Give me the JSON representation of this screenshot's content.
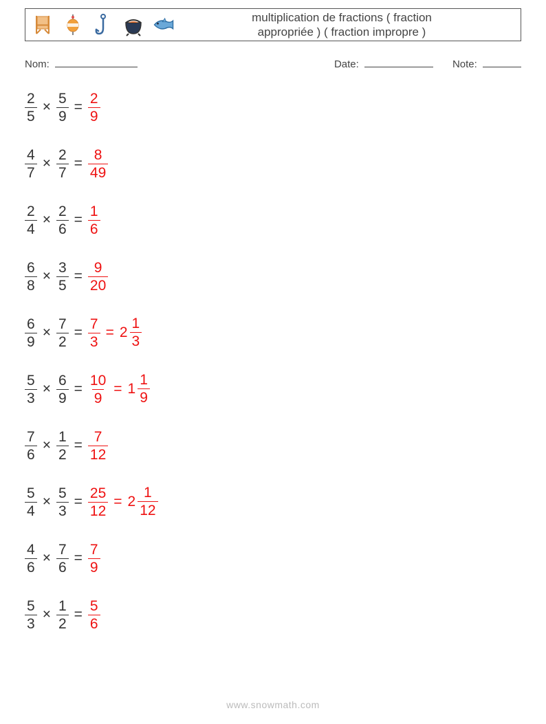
{
  "header": {
    "title_line1": "multiplication de fractions ( fraction",
    "title_line2": "appropriée ) ( fraction impropre )"
  },
  "meta": {
    "name_label": "Nom:",
    "date_label": "Date:",
    "note_label": "Note:"
  },
  "colors": {
    "text": "#333333",
    "answer": "#ee1111",
    "border": "#555555",
    "footer": "#bbbbbb"
  },
  "icons": [
    {
      "name": "chair-icon",
      "stroke": "#d68a3a",
      "fill": "#f2c087"
    },
    {
      "name": "bobber-icon",
      "stroke": "#d68a3a",
      "fill": "#f2a03a",
      "accent": "#e05050"
    },
    {
      "name": "hook-icon",
      "stroke": "#3a6aa0",
      "fill": "none"
    },
    {
      "name": "pot-icon",
      "stroke": "#333333",
      "fill": "#2a3a55",
      "accent": "#e07030"
    },
    {
      "name": "fish-icon",
      "stroke": "#2a6aa0",
      "fill": "#6aa8d8"
    }
  ],
  "problems": [
    {
      "a": {
        "n": "2",
        "d": "5"
      },
      "b": {
        "n": "5",
        "d": "9"
      },
      "result": {
        "n": "2",
        "d": "9"
      }
    },
    {
      "a": {
        "n": "4",
        "d": "7"
      },
      "b": {
        "n": "2",
        "d": "7"
      },
      "result": {
        "n": "8",
        "d": "49"
      }
    },
    {
      "a": {
        "n": "2",
        "d": "4"
      },
      "b": {
        "n": "2",
        "d": "6"
      },
      "result": {
        "n": "1",
        "d": "6"
      }
    },
    {
      "a": {
        "n": "6",
        "d": "8"
      },
      "b": {
        "n": "3",
        "d": "5"
      },
      "result": {
        "n": "9",
        "d": "20"
      }
    },
    {
      "a": {
        "n": "6",
        "d": "9"
      },
      "b": {
        "n": "7",
        "d": "2"
      },
      "result": {
        "n": "7",
        "d": "3"
      },
      "mixed": {
        "w": "2",
        "n": "1",
        "d": "3"
      }
    },
    {
      "a": {
        "n": "5",
        "d": "3"
      },
      "b": {
        "n": "6",
        "d": "9"
      },
      "result": {
        "n": "10",
        "d": "9"
      },
      "mixed": {
        "w": "1",
        "n": "1",
        "d": "9"
      }
    },
    {
      "a": {
        "n": "7",
        "d": "6"
      },
      "b": {
        "n": "1",
        "d": "2"
      },
      "result": {
        "n": "7",
        "d": "12"
      }
    },
    {
      "a": {
        "n": "5",
        "d": "4"
      },
      "b": {
        "n": "5",
        "d": "3"
      },
      "result": {
        "n": "25",
        "d": "12"
      },
      "mixed": {
        "w": "2",
        "n": "1",
        "d": "12"
      }
    },
    {
      "a": {
        "n": "4",
        "d": "6"
      },
      "b": {
        "n": "7",
        "d": "6"
      },
      "result": {
        "n": "7",
        "d": "9"
      }
    },
    {
      "a": {
        "n": "5",
        "d": "3"
      },
      "b": {
        "n": "1",
        "d": "2"
      },
      "result": {
        "n": "5",
        "d": "6"
      }
    }
  ],
  "footer": {
    "url": "www.snowmath.com"
  }
}
